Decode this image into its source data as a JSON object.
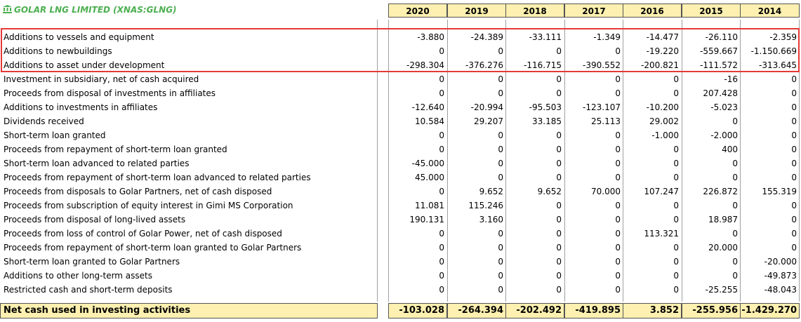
{
  "title": "GOLAR LNG LIMITED (XNAS:GLNG)",
  "title_icon": "bank-icon",
  "years": [
    "2020",
    "2019",
    "2018",
    "2017",
    "2016",
    "2015",
    "2014"
  ],
  "rows": [
    {
      "label": "Additions to vessels and equipment",
      "values": [
        "-3.880",
        "-24.389",
        "-33.111",
        "-1.349",
        "-14.477",
        "-26.110",
        "-2.359"
      ],
      "highlighted": true
    },
    {
      "label": "Additions to newbuildings",
      "values": [
        "0",
        "0",
        "0",
        "0",
        "-19.220",
        "-559.667",
        "-1.150.669"
      ],
      "highlighted": true
    },
    {
      "label": "Additions to asset under development",
      "values": [
        "-298.304",
        "-376.276",
        "-116.715",
        "-390.552",
        "-200.821",
        "-111.572",
        "-313.645"
      ],
      "highlighted": true
    },
    {
      "label": "Investment in subsidiary, net of cash acquired",
      "values": [
        "0",
        "0",
        "0",
        "0",
        "0",
        "-16",
        "0"
      ]
    },
    {
      "label": "Proceeds from disposal of investments in affiliates",
      "values": [
        "0",
        "0",
        "0",
        "0",
        "0",
        "207.428",
        "0"
      ]
    },
    {
      "label": "Additions to investments in affiliates",
      "values": [
        "-12.640",
        "-20.994",
        "-95.503",
        "-123.107",
        "-10.200",
        "-5.023",
        "0"
      ]
    },
    {
      "label": "Dividends received",
      "values": [
        "10.584",
        "29.207",
        "33.185",
        "25.113",
        "29.002",
        "0",
        "0"
      ]
    },
    {
      "label": "Short-term loan granted",
      "values": [
        "0",
        "0",
        "0",
        "0",
        "-1.000",
        "-2.000",
        "0"
      ]
    },
    {
      "label": "Proceeds from repayment of short-term loan granted",
      "values": [
        "0",
        "0",
        "0",
        "0",
        "0",
        "400",
        "0"
      ]
    },
    {
      "label": "Short-term loan advanced to related parties",
      "values": [
        "-45.000",
        "0",
        "0",
        "0",
        "0",
        "0",
        "0"
      ]
    },
    {
      "label": "Proceeds from repayment of short-term loan advanced to related parties",
      "values": [
        "45.000",
        "0",
        "0",
        "0",
        "0",
        "0",
        "0"
      ]
    },
    {
      "label": "Proceeds from disposals to Golar Partners, net of cash disposed",
      "values": [
        "0",
        "9.652",
        "9.652",
        "70.000",
        "107.247",
        "226.872",
        "155.319"
      ]
    },
    {
      "label": "Proceeds from subscription of equity interest in Gimi MS Corporation",
      "values": [
        "11.081",
        "115.246",
        "0",
        "0",
        "0",
        "0",
        "0"
      ]
    },
    {
      "label": "Proceeds from disposal of long-lived assets",
      "values": [
        "190.131",
        "3.160",
        "0",
        "0",
        "0",
        "18.987",
        "0"
      ]
    },
    {
      "label": "Proceeds from loss of control of Golar Power, net of cash disposed",
      "values": [
        "0",
        "0",
        "0",
        "0",
        "113.321",
        "0",
        "0"
      ]
    },
    {
      "label": "Proceeds from repayment of short-term loan granted to Golar Partners",
      "values": [
        "0",
        "0",
        "0",
        "0",
        "0",
        "20.000",
        "0"
      ]
    },
    {
      "label": "Short-term loan granted to Golar Partners",
      "values": [
        "0",
        "0",
        "0",
        "0",
        "0",
        "0",
        "-20.000"
      ]
    },
    {
      "label": "Additions to other long-term assets",
      "values": [
        "0",
        "0",
        "0",
        "0",
        "0",
        "0",
        "-49.873"
      ]
    },
    {
      "label": "Restricted cash and short-term deposits",
      "values": [
        "0",
        "0",
        "0",
        "0",
        "0",
        "-25.255",
        "-48.043"
      ]
    }
  ],
  "total": {
    "label": "Net cash used in investing activities",
    "values": [
      "-103.028",
      "-264.394",
      "-202.492",
      "-419.895",
      "3.852",
      "-255.956",
      "-1.429.270"
    ]
  },
  "colors": {
    "title": "#4caf50",
    "header_fill": "#fdf0b0",
    "highlight_border": "#e53935"
  }
}
